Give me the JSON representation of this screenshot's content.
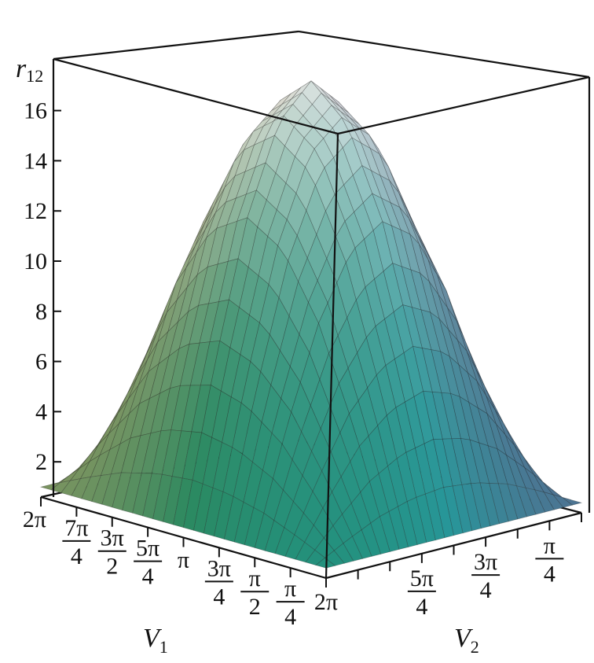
{
  "chart_data": {
    "type": "surface",
    "x_axis": {
      "label": "V",
      "label_sub": "1",
      "range": [
        0,
        6.2832
      ],
      "ticks": [
        {
          "num": "2π",
          "den": ""
        },
        {
          "num": "7π",
          "den": "4"
        },
        {
          "num": "3π",
          "den": "2"
        },
        {
          "num": "5π",
          "den": "4"
        },
        {
          "num": "π",
          "den": ""
        },
        {
          "num": "3π",
          "den": "4"
        },
        {
          "num": "π",
          "den": "2"
        },
        {
          "num": "π",
          "den": "4"
        }
      ],
      "tick_values": [
        6.2832,
        5.4978,
        4.7124,
        3.927,
        3.1416,
        2.3562,
        1.5708,
        0.7854
      ]
    },
    "y_axis": {
      "label": "V",
      "label_sub": "2",
      "range": [
        0,
        6.2832
      ],
      "ticks": [
        {
          "num": "2π",
          "den": ""
        },
        {
          "num": "5π",
          "den": "4"
        },
        {
          "num": "3π",
          "den": "4"
        },
        {
          "num": "π",
          "den": "4"
        }
      ],
      "tick_values": [
        6.2832,
        3.927,
        2.3562,
        0.7854
      ]
    },
    "z_axis": {
      "label": "r",
      "label_sub": "12",
      "range": [
        0.6,
        18
      ],
      "ticks": [
        "2",
        "4",
        "6",
        "8",
        "10",
        "12",
        "14",
        "16"
      ],
      "tick_values": [
        2,
        4,
        6,
        8,
        10,
        12,
        14,
        16
      ]
    },
    "grid_step": "π/4",
    "z_grid": [
      [
        1,
        1,
        1,
        1,
        1,
        1,
        1,
        1,
        1
      ],
      [
        1,
        3.4,
        5.5,
        6.8,
        7.3,
        6.8,
        5.5,
        3.4,
        1
      ],
      [
        1,
        5.5,
        9.3,
        11.8,
        12.7,
        11.8,
        9.3,
        5.5,
        1
      ],
      [
        1,
        6.8,
        11.8,
        15.1,
        16.2,
        15.1,
        11.8,
        6.8,
        1
      ],
      [
        1,
        7.3,
        12.7,
        16.2,
        17.5,
        16.2,
        12.7,
        7.3,
        1
      ],
      [
        1,
        6.8,
        11.8,
        15.1,
        16.2,
        15.1,
        11.8,
        6.8,
        1
      ],
      [
        1,
        5.5,
        9.3,
        11.8,
        12.7,
        11.8,
        9.3,
        5.5,
        1
      ],
      [
        1,
        3.4,
        5.5,
        6.8,
        7.3,
        6.8,
        5.5,
        3.4,
        1
      ],
      [
        1,
        1,
        1,
        1,
        1,
        1,
        1,
        1,
        1
      ]
    ],
    "colors": {
      "v1_high": "#d9a060",
      "v2_high": "#1f8a5a",
      "v2_low": "#7a4a8a",
      "v1_low": "#1a9aa0",
      "peak": "#f4f4f4"
    },
    "grid": false
  }
}
